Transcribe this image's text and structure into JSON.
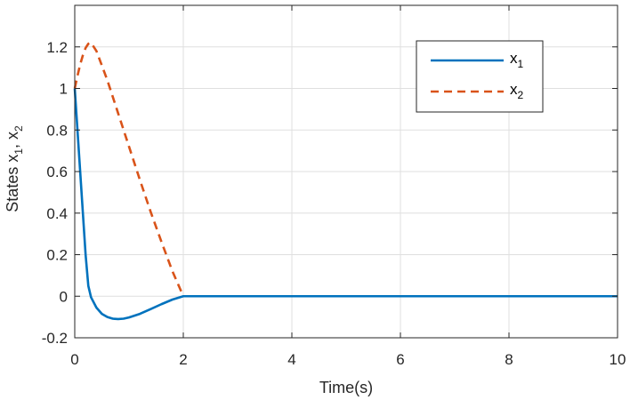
{
  "chart_data": {
    "type": "line",
    "xlabel": "Time(s)",
    "ylabel": {
      "base": "States x",
      "sub1": "1",
      "sep": ", x",
      "sub2": "2"
    },
    "xlim": [
      0,
      10
    ],
    "ylim": [
      -0.2,
      1.4
    ],
    "xticks": [
      0,
      2,
      4,
      6,
      8,
      10
    ],
    "yticks": [
      -0.2,
      0,
      0.2,
      0.4,
      0.6,
      0.8,
      1,
      1.2
    ],
    "ytick_labels": [
      "-0.2",
      "0",
      "0.2",
      "0.4",
      "0.6",
      "0.8",
      "1",
      "1.2"
    ],
    "xtick_labels": [
      "0",
      "2",
      "4",
      "6",
      "8",
      "10"
    ],
    "grid": true,
    "legend_position": "top-right",
    "series": [
      {
        "name": "x1",
        "legend_base": "x",
        "legend_sub": "1",
        "color": "#0072BD",
        "style": "solid",
        "x": [
          0,
          0.05,
          0.1,
          0.15,
          0.2,
          0.25,
          0.3,
          0.4,
          0.5,
          0.6,
          0.7,
          0.8,
          0.9,
          1.0,
          1.2,
          1.4,
          1.6,
          1.8,
          2.0,
          10
        ],
        "y": [
          1.0,
          0.8,
          0.6,
          0.4,
          0.2,
          0.05,
          -0.005,
          -0.055,
          -0.085,
          -0.1,
          -0.108,
          -0.11,
          -0.108,
          -0.102,
          -0.085,
          -0.062,
          -0.038,
          -0.016,
          0.0,
          0.0
        ]
      },
      {
        "name": "x2",
        "legend_base": "x",
        "legend_sub": "2",
        "color": "#D95319",
        "style": "dashed",
        "x": [
          0,
          0.05,
          0.1,
          0.15,
          0.2,
          0.25,
          0.3,
          0.4,
          0.6,
          0.8,
          1.0,
          1.2,
          1.4,
          1.6,
          1.8,
          2.0,
          10
        ],
        "y": [
          1.0,
          1.06,
          1.115,
          1.16,
          1.195,
          1.215,
          1.22,
          1.18,
          1.04,
          0.88,
          0.72,
          0.56,
          0.405,
          0.26,
          0.12,
          0.0,
          0.0
        ]
      }
    ]
  }
}
